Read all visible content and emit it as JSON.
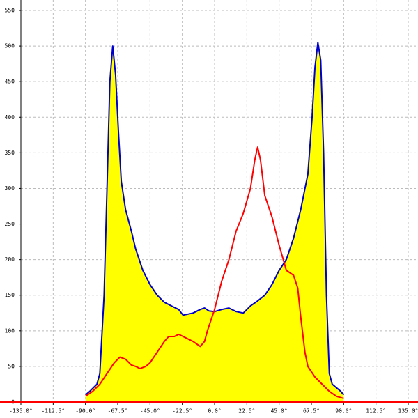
{
  "chart_data": {
    "type": "line",
    "xlim": [
      -135,
      135
    ],
    "ylim": [
      0,
      550
    ],
    "xticks": [
      {
        "value": -135,
        "label": "-135.0°"
      },
      {
        "value": -112.5,
        "label": "-112.5°"
      },
      {
        "value": -90,
        "label": "-90.0°"
      },
      {
        "value": -67.5,
        "label": "-67.5°"
      },
      {
        "value": -45,
        "label": "-45.0°"
      },
      {
        "value": -22.5,
        "label": "-22.5°"
      },
      {
        "value": 0,
        "label": "0.0°"
      },
      {
        "value": 22.5,
        "label": "22.5°"
      },
      {
        "value": 45,
        "label": "45.0°"
      },
      {
        "value": 67.5,
        "label": "67.5°"
      },
      {
        "value": 90,
        "label": "90.0°"
      },
      {
        "value": 112.5,
        "label": "112.5°"
      },
      {
        "value": 135,
        "label": "135.0°"
      }
    ],
    "yticks": [
      0,
      50,
      100,
      150,
      200,
      250,
      300,
      350,
      400,
      450,
      500,
      550
    ],
    "grid": true,
    "series": [
      {
        "color": "#0000cc",
        "fill": "#ffff00",
        "x": [
          -90,
          -87,
          -82,
          -80,
          -77,
          -75,
          -73,
          -71,
          -69,
          -67,
          -65,
          -62,
          -58,
          -55,
          -50,
          -45,
          -40,
          -35,
          -30,
          -25,
          -22,
          -15,
          -10,
          -7,
          -4,
          0,
          5,
          10,
          15,
          20,
          25,
          30,
          35,
          40,
          45,
          50,
          55,
          60,
          65,
          68,
          70,
          72,
          74,
          76,
          78,
          80,
          82,
          88,
          90
        ],
        "values": [
          10,
          15,
          25,
          40,
          150,
          300,
          450,
          500,
          460,
          380,
          310,
          270,
          240,
          215,
          185,
          165,
          150,
          140,
          135,
          130,
          122,
          125,
          130,
          132,
          128,
          127,
          130,
          132,
          127,
          125,
          135,
          142,
          150,
          165,
          185,
          200,
          230,
          270,
          320,
          400,
          470,
          505,
          480,
          350,
          150,
          40,
          25,
          15,
          10
        ]
      },
      {
        "color": "#ff0000",
        "x": [
          -90,
          -85,
          -80,
          -75,
          -70,
          -66,
          -62,
          -58,
          -55,
          -52,
          -48,
          -45,
          -40,
          -35,
          -32,
          -28,
          -25,
          -20,
          -15,
          -10,
          -7,
          -5,
          0,
          5,
          10,
          15,
          20,
          25,
          28,
          30,
          32,
          35,
          40,
          45,
          50,
          55,
          58,
          60,
          63,
          65,
          70,
          75,
          80,
          85,
          90
        ],
        "values": [
          8,
          15,
          25,
          40,
          55,
          63,
          60,
          52,
          50,
          47,
          50,
          55,
          70,
          85,
          92,
          92,
          95,
          90,
          85,
          78,
          85,
          100,
          130,
          170,
          200,
          240,
          265,
          300,
          340,
          358,
          340,
          290,
          260,
          220,
          185,
          178,
          160,
          120,
          70,
          50,
          35,
          25,
          15,
          8,
          5
        ]
      }
    ]
  }
}
